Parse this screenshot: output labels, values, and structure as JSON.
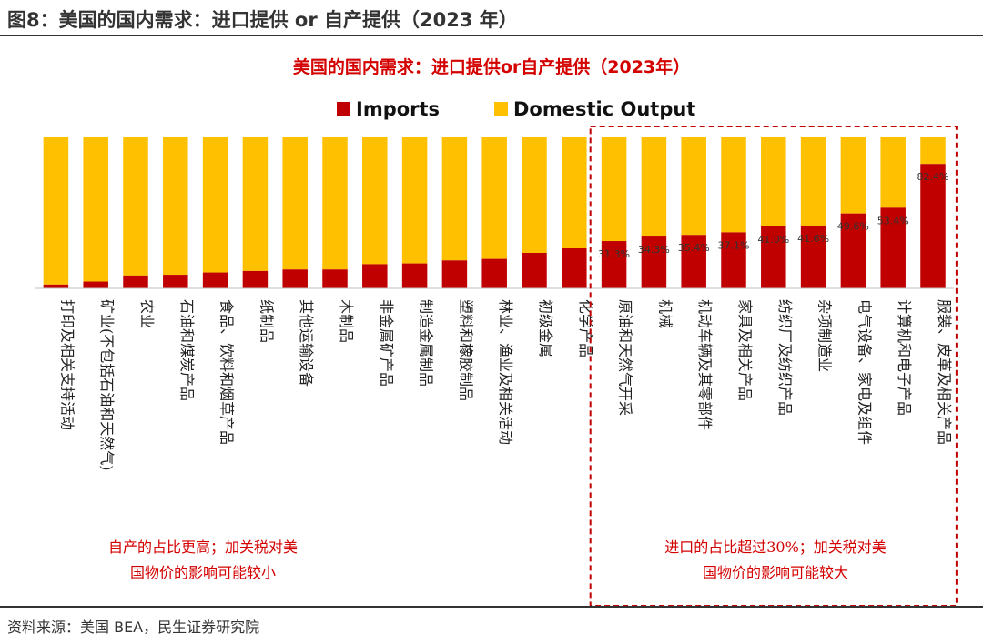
{
  "figure": {
    "title": "图8：美国的国内需求：进口提供 or 自产提供（2023 年）",
    "source": "资料来源：美国 BEA，民生证券研究院"
  },
  "notes": {
    "left_line1": "自产的占比更高；加关税对美",
    "left_line2": "国物价的影响可能较小",
    "right_line1": "进口的占比超过30%；加关税对美",
    "right_line2": "国物价的影响可能较大"
  },
  "colors": {
    "imports": "#c00000",
    "domestic": "#ffc000",
    "highlight_box": "#c00000",
    "title": "#d40000"
  },
  "chart_data": {
    "type": "bar",
    "stacked": true,
    "percent": true,
    "title": "美国的国内需求：进口提供or自产提供（2023年）",
    "legend_position": "top",
    "ylim": [
      0,
      100
    ],
    "categories": [
      "打印及相关支持活动",
      "矿业(不包括石油和天然气)",
      "农业",
      "石油和煤炭产品",
      "食品、饮料和烟草产品",
      "纸制品",
      "其他运输设备",
      "木制品",
      "非金属矿产品",
      "制造金属制品",
      "塑料和橡胶制品",
      "林业、渔业及相关活动",
      "初级金属",
      "化学产品",
      "原油和天然气开采",
      "机械",
      "机动车辆及其零部件",
      "家具及相关产品",
      "纺织厂及纺织产品",
      "杂项制造业",
      "电气设备、家电及组件",
      "计算机和电子产品",
      "服装、皮革及相关产品"
    ],
    "series": [
      {
        "name": "Imports",
        "values": [
          2.5,
          4.5,
          8.5,
          9.0,
          10.5,
          11.5,
          12.5,
          12.5,
          16.0,
          16.5,
          18.5,
          19.5,
          23.5,
          26.5,
          31.3,
          34.3,
          35.4,
          37.1,
          41.0,
          41.6,
          49.6,
          53.4,
          82.4
        ]
      },
      {
        "name": "Domestic Output",
        "values": [
          97.5,
          95.5,
          91.5,
          91.0,
          89.5,
          88.5,
          87.5,
          87.5,
          84.0,
          83.5,
          81.5,
          80.5,
          76.5,
          73.5,
          68.7,
          65.7,
          64.6,
          62.9,
          59.0,
          58.4,
          50.4,
          46.6,
          17.6
        ]
      }
    ],
    "data_labels": [
      "31.3%",
      "34.3%",
      "35.4%",
      "37.1%",
      "41.0%",
      "41.6%",
      "49.6%",
      "53.4%",
      "82.4%"
    ],
    "label_start_index": 14,
    "highlight_start_index": 14
  }
}
